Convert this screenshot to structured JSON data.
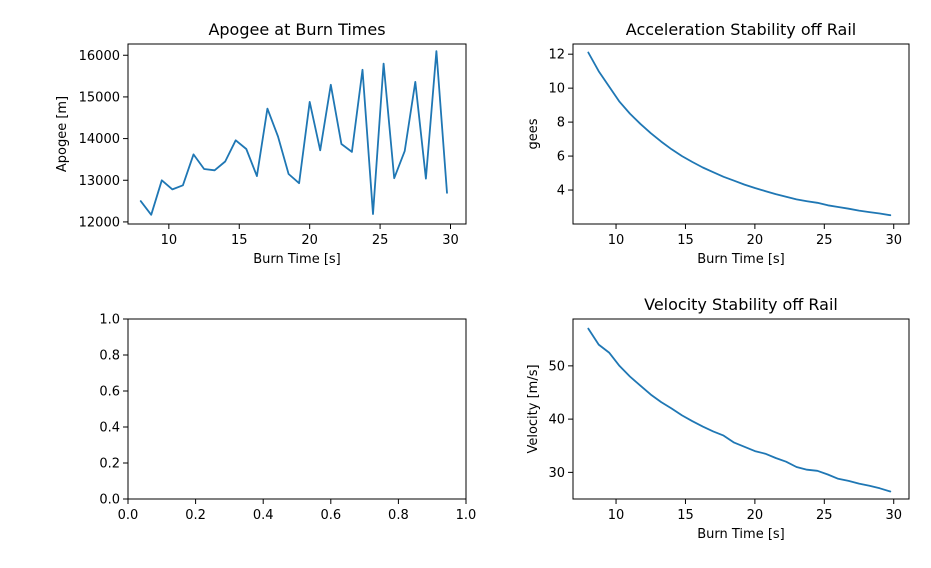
{
  "chart_data": [
    {
      "type": "line",
      "title": "Apogee at Burn Times",
      "xlabel": "Burn Time [s]",
      "ylabel": "Apogee [m]",
      "xlim": [
        7.1,
        31.1
      ],
      "ylim": [
        11950,
        16270
      ],
      "xticks": [
        10,
        15,
        20,
        25,
        30
      ],
      "yticks": [
        12000,
        13000,
        14000,
        15000,
        16000
      ],
      "series": [
        {
          "x": [
            8,
            8.75,
            9.5,
            10.25,
            11,
            11.75,
            12.5,
            13.25,
            14,
            14.75,
            15.5,
            16.25,
            17,
            17.75,
            18.5,
            19.25,
            20,
            20.75,
            21.5,
            22.25,
            23,
            23.75,
            24.5,
            25.25,
            26,
            26.75,
            27.5,
            28.25,
            29,
            29.75
          ],
          "y": [
            12500,
            12170,
            13000,
            12780,
            12880,
            13620,
            13270,
            13240,
            13450,
            13960,
            13750,
            13100,
            14720,
            14050,
            13150,
            12930,
            14880,
            13720,
            15290,
            13870,
            13680,
            15650,
            12190,
            15800,
            13050,
            13700,
            15360,
            13040,
            16100,
            12700
          ]
        }
      ]
    },
    {
      "type": "line",
      "title": "Acceleration Stability off Rail",
      "xlabel": "Burn Time [s]",
      "ylabel": "gees",
      "xlim": [
        6.9,
        31.1
      ],
      "ylim": [
        2.0,
        12.6
      ],
      "xticks": [
        10,
        15,
        20,
        25,
        30
      ],
      "yticks": [
        4,
        6,
        8,
        10,
        12
      ],
      "series": [
        {
          "x": [
            8,
            8.75,
            9.5,
            10.25,
            11,
            11.75,
            12.5,
            13.25,
            14,
            14.75,
            15.5,
            16.25,
            17,
            17.75,
            18.5,
            19.25,
            20,
            20.75,
            21.5,
            22.25,
            23,
            23.75,
            24.5,
            25.25,
            26,
            26.75,
            27.5,
            28.25,
            29,
            29.75
          ],
          "y": [
            12.1,
            11.0,
            10.1,
            9.2,
            8.5,
            7.9,
            7.35,
            6.85,
            6.4,
            6.0,
            5.65,
            5.33,
            5.05,
            4.78,
            4.55,
            4.32,
            4.12,
            3.94,
            3.76,
            3.6,
            3.45,
            3.34,
            3.25,
            3.1,
            3.0,
            2.9,
            2.79,
            2.7,
            2.62,
            2.52
          ]
        }
      ]
    },
    {
      "type": "line",
      "title": "",
      "xlabel": "",
      "ylabel": "",
      "xlim": [
        0.0,
        1.0
      ],
      "ylim": [
        0.0,
        1.0
      ],
      "xticks": [
        "0.0",
        "0.2",
        "0.4",
        "0.6",
        "0.8",
        "1.0"
      ],
      "yticks": [
        "0.0",
        "0.2",
        "0.4",
        "0.6",
        "0.8",
        "1.0"
      ],
      "series": []
    },
    {
      "type": "line",
      "title": "Velocity Stability off Rail",
      "xlabel": "Burn Time [s]",
      "ylabel": "Velocity [m/s]",
      "xlim": [
        6.9,
        31.1
      ],
      "ylim": [
        25.0,
        58.8
      ],
      "xticks": [
        10,
        15,
        20,
        25,
        30
      ],
      "yticks": [
        30,
        40,
        50
      ],
      "series": [
        {
          "x": [
            8,
            8.75,
            9.5,
            10.25,
            11,
            11.75,
            12.5,
            13.25,
            14,
            14.75,
            15.5,
            16.25,
            17,
            17.75,
            18.5,
            19.25,
            20,
            20.75,
            21.5,
            22.25,
            23,
            23.75,
            24.5,
            25.25,
            26,
            26.75,
            27.5,
            28.25,
            29,
            29.75
          ],
          "y": [
            57.0,
            54.0,
            52.5,
            50.0,
            48.0,
            46.3,
            44.6,
            43.2,
            42.0,
            40.7,
            39.6,
            38.6,
            37.7,
            36.9,
            35.6,
            34.8,
            34.0,
            33.5,
            32.7,
            32.0,
            31.0,
            30.5,
            30.3,
            29.6,
            28.8,
            28.4,
            27.9,
            27.5,
            27.0,
            26.4
          ]
        }
      ]
    }
  ]
}
